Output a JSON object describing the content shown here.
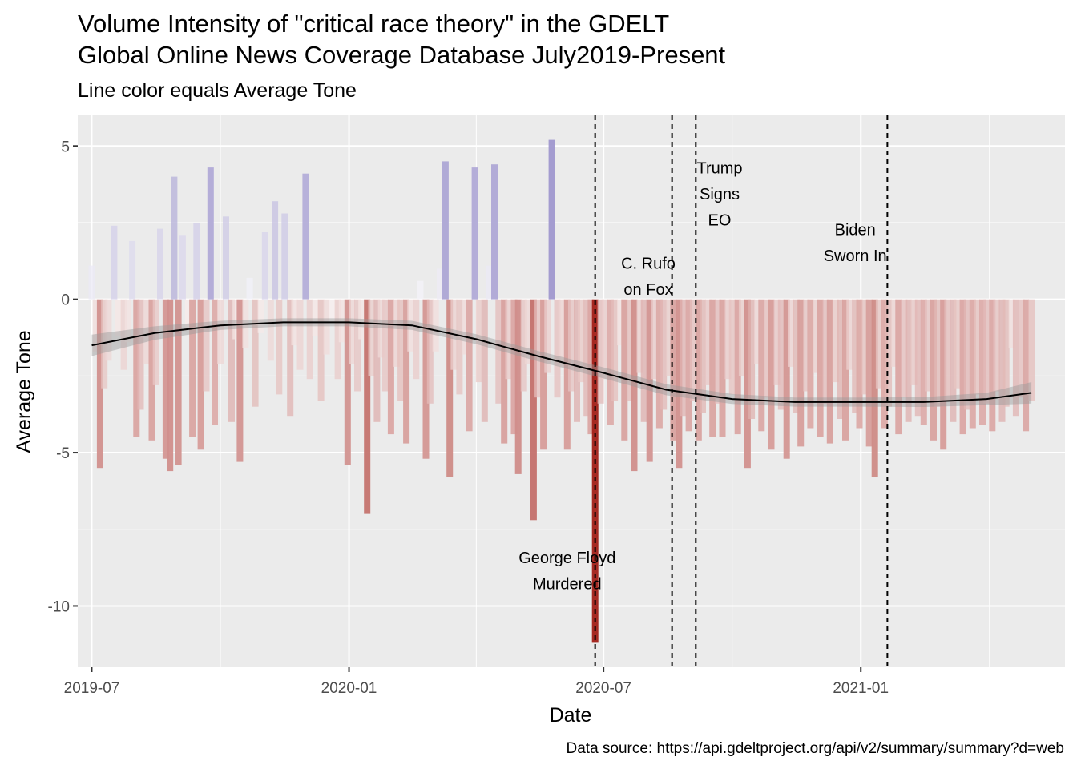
{
  "chart_data": {
    "type": "bar",
    "title_lines": [
      "Volume Intensity of \"critical race theory\" in the GDELT",
      "Global Online News Coverage Database July2019-Present"
    ],
    "subtitle": "Line color equals Average Tone",
    "xlabel": "Date",
    "ylabel": "Average Tone",
    "caption": "Data source: https://api.gdeltproject.org/api/v2/summary/summary?d=web",
    "xlim": [
      "2019-06-21",
      "2021-05-27"
    ],
    "ylim": [
      -12.0,
      6.0
    ],
    "y_ticks": [
      5,
      0,
      -5,
      -10
    ],
    "y_tick_labels": [
      "5",
      "0",
      "-5",
      "-10"
    ],
    "x_ticks": [
      "2019-07-01",
      "2020-01-01",
      "2020-07-01",
      "2021-01-01"
    ],
    "x_tick_labels": [
      "2019-07",
      "2020-01",
      "2020-07",
      "2021-01"
    ],
    "grid": true,
    "legend": "none",
    "colors": {
      "positive": "#9b92cc",
      "negative": "#a01a12",
      "neutral": "#ffffff",
      "panel": "#ebebeb",
      "smooth_line": "#000000",
      "smooth_band": "#999999"
    },
    "bars": [
      {
        "date": "2019-07-01",
        "value": 1.1
      },
      {
        "date": "2019-07-04",
        "value": -1.7
      },
      {
        "date": "2019-07-07",
        "value": -5.5
      },
      {
        "date": "2019-07-10",
        "value": -2.9
      },
      {
        "date": "2019-07-13",
        "value": -2.0
      },
      {
        "date": "2019-07-17",
        "value": 2.4
      },
      {
        "date": "2019-07-20",
        "value": -1.2
      },
      {
        "date": "2019-07-24",
        "value": -2.3
      },
      {
        "date": "2019-07-27",
        "value": -1.4
      },
      {
        "date": "2019-07-30",
        "value": 1.9
      },
      {
        "date": "2019-08-02",
        "value": -4.5
      },
      {
        "date": "2019-08-05",
        "value": -3.6
      },
      {
        "date": "2019-08-09",
        "value": -2.1
      },
      {
        "date": "2019-08-13",
        "value": -4.6
      },
      {
        "date": "2019-08-16",
        "value": -2.8
      },
      {
        "date": "2019-08-19",
        "value": 2.3
      },
      {
        "date": "2019-08-23",
        "value": -5.2
      },
      {
        "date": "2019-08-26",
        "value": -5.6
      },
      {
        "date": "2019-08-29",
        "value": 4.0
      },
      {
        "date": "2019-09-01",
        "value": -5.4
      },
      {
        "date": "2019-09-04",
        "value": 2.1
      },
      {
        "date": "2019-09-08",
        "value": -1.0
      },
      {
        "date": "2019-09-11",
        "value": -4.5
      },
      {
        "date": "2019-09-14",
        "value": 2.5
      },
      {
        "date": "2019-09-17",
        "value": -4.9
      },
      {
        "date": "2019-09-21",
        "value": -3.0
      },
      {
        "date": "2019-09-24",
        "value": 4.3
      },
      {
        "date": "2019-09-27",
        "value": -4.1
      },
      {
        "date": "2019-10-01",
        "value": -2.1
      },
      {
        "date": "2019-10-05",
        "value": 2.7
      },
      {
        "date": "2019-10-09",
        "value": -4.0
      },
      {
        "date": "2019-10-12",
        "value": -1.3
      },
      {
        "date": "2019-10-15",
        "value": -5.3
      },
      {
        "date": "2019-10-19",
        "value": -1.6
      },
      {
        "date": "2019-10-22",
        "value": 0.7
      },
      {
        "date": "2019-10-26",
        "value": -3.5
      },
      {
        "date": "2019-10-30",
        "value": -1.1
      },
      {
        "date": "2019-11-02",
        "value": 2.2
      },
      {
        "date": "2019-11-06",
        "value": -2.0
      },
      {
        "date": "2019-11-09",
        "value": 3.2
      },
      {
        "date": "2019-11-12",
        "value": -3.1
      },
      {
        "date": "2019-11-16",
        "value": 2.8
      },
      {
        "date": "2019-11-20",
        "value": -3.8
      },
      {
        "date": "2019-11-23",
        "value": -1.5
      },
      {
        "date": "2019-11-27",
        "value": -2.3
      },
      {
        "date": "2019-12-01",
        "value": 4.1
      },
      {
        "date": "2019-12-04",
        "value": -2.6
      },
      {
        "date": "2019-12-08",
        "value": -1.2
      },
      {
        "date": "2019-12-12",
        "value": -3.3
      },
      {
        "date": "2019-12-16",
        "value": -1.8
      },
      {
        "date": "2019-12-20",
        "value": -0.8
      },
      {
        "date": "2019-12-24",
        "value": -2.6
      },
      {
        "date": "2019-12-27",
        "value": -1.4
      },
      {
        "date": "2019-12-31",
        "value": -5.4
      },
      {
        "date": "2020-01-03",
        "value": -2.1
      },
      {
        "date": "2020-01-07",
        "value": -3.0
      },
      {
        "date": "2020-01-10",
        "value": -1.3
      },
      {
        "date": "2020-01-14",
        "value": -7.0
      },
      {
        "date": "2020-01-17",
        "value": -2.5
      },
      {
        "date": "2020-01-21",
        "value": -4.0
      },
      {
        "date": "2020-01-24",
        "value": -1.9
      },
      {
        "date": "2020-01-27",
        "value": -3.0
      },
      {
        "date": "2020-01-31",
        "value": -4.4
      },
      {
        "date": "2020-02-04",
        "value": -2.2
      },
      {
        "date": "2020-02-07",
        "value": -3.3
      },
      {
        "date": "2020-02-11",
        "value": -4.7
      },
      {
        "date": "2020-02-14",
        "value": -1.7
      },
      {
        "date": "2020-02-18",
        "value": -2.6
      },
      {
        "date": "2020-02-21",
        "value": 0.6
      },
      {
        "date": "2020-02-25",
        "value": -5.2
      },
      {
        "date": "2020-02-28",
        "value": -3.4
      },
      {
        "date": "2020-03-03",
        "value": -1.7
      },
      {
        "date": "2020-03-06",
        "value": 1.0
      },
      {
        "date": "2020-03-10",
        "value": 4.5
      },
      {
        "date": "2020-03-13",
        "value": -5.8
      },
      {
        "date": "2020-03-16",
        "value": -2.3
      },
      {
        "date": "2020-03-20",
        "value": -3.1
      },
      {
        "date": "2020-03-24",
        "value": -1.8
      },
      {
        "date": "2020-03-27",
        "value": -4.3
      },
      {
        "date": "2020-03-31",
        "value": 4.3
      },
      {
        "date": "2020-04-03",
        "value": -2.7
      },
      {
        "date": "2020-04-07",
        "value": -4.0
      },
      {
        "date": "2020-04-10",
        "value": 1.1
      },
      {
        "date": "2020-04-14",
        "value": 4.4
      },
      {
        "date": "2020-04-17",
        "value": -3.4
      },
      {
        "date": "2020-04-21",
        "value": -4.7
      },
      {
        "date": "2020-04-24",
        "value": -2.6
      },
      {
        "date": "2020-04-28",
        "value": -4.4
      },
      {
        "date": "2020-05-01",
        "value": -5.7
      },
      {
        "date": "2020-05-05",
        "value": -3.0
      },
      {
        "date": "2020-05-08",
        "value": -2.1
      },
      {
        "date": "2020-05-12",
        "value": -7.2
      },
      {
        "date": "2020-05-15",
        "value": -3.2
      },
      {
        "date": "2020-05-19",
        "value": -4.9
      },
      {
        "date": "2020-05-22",
        "value": -2.4
      },
      {
        "date": "2020-05-25",
        "value": 5.2
      },
      {
        "date": "2020-05-29",
        "value": -3.2
      },
      {
        "date": "2020-06-01",
        "value": -2.2
      },
      {
        "date": "2020-06-05",
        "value": -4.9
      },
      {
        "date": "2020-06-08",
        "value": -3.0
      },
      {
        "date": "2020-06-12",
        "value": -4.0
      },
      {
        "date": "2020-06-15",
        "value": -2.7
      },
      {
        "date": "2020-06-19",
        "value": -3.8
      },
      {
        "date": "2020-06-22",
        "value": -4.4
      },
      {
        "date": "2020-06-25",
        "value": -11.2
      },
      {
        "date": "2020-06-29",
        "value": -3.4
      },
      {
        "date": "2020-07-02",
        "value": -2.6
      },
      {
        "date": "2020-07-06",
        "value": -4.1
      },
      {
        "date": "2020-07-09",
        "value": -3.3
      },
      {
        "date": "2020-07-13",
        "value": -1.5
      },
      {
        "date": "2020-07-16",
        "value": -4.6
      },
      {
        "date": "2020-07-20",
        "value": -3.3
      },
      {
        "date": "2020-07-23",
        "value": -5.6
      },
      {
        "date": "2020-07-27",
        "value": -2.4
      },
      {
        "date": "2020-07-30",
        "value": -4.0
      },
      {
        "date": "2020-08-03",
        "value": -5.3
      },
      {
        "date": "2020-08-06",
        "value": -2.6
      },
      {
        "date": "2020-08-10",
        "value": -4.2
      },
      {
        "date": "2020-08-13",
        "value": -3.6
      },
      {
        "date": "2020-08-17",
        "value": -2.5
      },
      {
        "date": "2020-08-20",
        "value": -4.6
      },
      {
        "date": "2020-08-24",
        "value": -5.5
      },
      {
        "date": "2020-08-27",
        "value": -3.8
      },
      {
        "date": "2020-08-31",
        "value": -4.3
      },
      {
        "date": "2020-09-03",
        "value": -3.3
      },
      {
        "date": "2020-09-07",
        "value": -4.6
      },
      {
        "date": "2020-09-10",
        "value": -3.7
      },
      {
        "date": "2020-09-14",
        "value": -2.8
      },
      {
        "date": "2020-09-17",
        "value": -4.5
      },
      {
        "date": "2020-09-21",
        "value": -3.4
      },
      {
        "date": "2020-09-24",
        "value": -4.5
      },
      {
        "date": "2020-09-28",
        "value": -2.6
      },
      {
        "date": "2020-10-01",
        "value": -3.1
      },
      {
        "date": "2020-10-05",
        "value": -4.4
      },
      {
        "date": "2020-10-08",
        "value": -2.5
      },
      {
        "date": "2020-10-12",
        "value": -5.5
      },
      {
        "date": "2020-10-15",
        "value": -3.9
      },
      {
        "date": "2020-10-19",
        "value": -2.1
      },
      {
        "date": "2020-10-22",
        "value": -4.3
      },
      {
        "date": "2020-10-26",
        "value": -3.2
      },
      {
        "date": "2020-10-29",
        "value": -4.9
      },
      {
        "date": "2020-11-02",
        "value": -2.8
      },
      {
        "date": "2020-11-05",
        "value": -3.6
      },
      {
        "date": "2020-11-09",
        "value": -5.2
      },
      {
        "date": "2020-11-12",
        "value": -2.2
      },
      {
        "date": "2020-11-16",
        "value": -3.7
      },
      {
        "date": "2020-11-19",
        "value": -4.8
      },
      {
        "date": "2020-11-23",
        "value": -3.0
      },
      {
        "date": "2020-11-26",
        "value": -4.2
      },
      {
        "date": "2020-11-30",
        "value": -2.4
      },
      {
        "date": "2020-12-03",
        "value": -4.5
      },
      {
        "date": "2020-12-07",
        "value": -3.4
      },
      {
        "date": "2020-12-10",
        "value": -4.7
      },
      {
        "date": "2020-12-14",
        "value": -2.7
      },
      {
        "date": "2020-12-17",
        "value": -3.9
      },
      {
        "date": "2020-12-21",
        "value": -4.6
      },
      {
        "date": "2020-12-24",
        "value": -2.3
      },
      {
        "date": "2020-12-28",
        "value": -3.7
      },
      {
        "date": "2020-12-31",
        "value": -4.2
      },
      {
        "date": "2021-01-04",
        "value": -3.1
      },
      {
        "date": "2021-01-07",
        "value": -4.8
      },
      {
        "date": "2021-01-11",
        "value": -5.8
      },
      {
        "date": "2021-01-14",
        "value": -2.9
      },
      {
        "date": "2021-01-18",
        "value": -4.2
      },
      {
        "date": "2021-01-21",
        "value": -3.5
      },
      {
        "date": "2021-01-25",
        "value": -2.2
      },
      {
        "date": "2021-01-28",
        "value": -4.4
      },
      {
        "date": "2021-02-01",
        "value": -3.2
      },
      {
        "date": "2021-02-04",
        "value": -4.0
      },
      {
        "date": "2021-02-08",
        "value": -2.8
      },
      {
        "date": "2021-02-11",
        "value": -3.8
      },
      {
        "date": "2021-02-15",
        "value": -4.1
      },
      {
        "date": "2021-02-18",
        "value": -3.0
      },
      {
        "date": "2021-02-22",
        "value": -4.6
      },
      {
        "date": "2021-02-25",
        "value": -3.5
      },
      {
        "date": "2021-03-01",
        "value": -4.9
      },
      {
        "date": "2021-03-04",
        "value": -3.3
      },
      {
        "date": "2021-03-08",
        "value": -4.0
      },
      {
        "date": "2021-03-11",
        "value": -2.9
      },
      {
        "date": "2021-03-15",
        "value": -4.4
      },
      {
        "date": "2021-03-18",
        "value": -3.6
      },
      {
        "date": "2021-03-22",
        "value": -4.2
      },
      {
        "date": "2021-03-25",
        "value": -3.1
      },
      {
        "date": "2021-03-29",
        "value": -4.1
      },
      {
        "date": "2021-04-01",
        "value": -3.4
      },
      {
        "date": "2021-04-05",
        "value": -4.3
      },
      {
        "date": "2021-04-08",
        "value": -3.0
      },
      {
        "date": "2021-04-12",
        "value": -4.0
      },
      {
        "date": "2021-04-15",
        "value": -3.5
      },
      {
        "date": "2021-04-19",
        "value": -1.6
      },
      {
        "date": "2021-04-22",
        "value": -3.8
      },
      {
        "date": "2021-04-26",
        "value": -3.2
      },
      {
        "date": "2021-04-29",
        "value": -4.3
      },
      {
        "date": "2021-05-03",
        "value": -3.3
      }
    ],
    "smooth": {
      "x": [
        "2019-07-01",
        "2019-08-15",
        "2019-10-01",
        "2019-11-15",
        "2020-01-01",
        "2020-02-15",
        "2020-04-01",
        "2020-05-15",
        "2020-07-01",
        "2020-08-15",
        "2020-10-01",
        "2020-11-15",
        "2021-01-01",
        "2021-02-15",
        "2021-04-01",
        "2021-05-03"
      ],
      "y": [
        -1.5,
        -1.1,
        -0.85,
        -0.75,
        -0.75,
        -0.85,
        -1.3,
        -1.85,
        -2.4,
        -2.95,
        -3.25,
        -3.35,
        -3.35,
        -3.35,
        -3.25,
        -3.05
      ],
      "band_halfwidth": [
        0.35,
        0.22,
        0.15,
        0.13,
        0.13,
        0.15,
        0.16,
        0.17,
        0.18,
        0.18,
        0.16,
        0.15,
        0.15,
        0.16,
        0.2,
        0.35
      ]
    },
    "events": [
      {
        "date": "2020-06-25",
        "label_lines": [
          "George Floyd",
          "Murdered"
        ],
        "label_y": -8.6,
        "label_date": "2020-06-05"
      },
      {
        "date": "2020-08-19",
        "label_lines": [
          "C. Rufo",
          "on Fox"
        ],
        "label_y": 1.0,
        "label_date": "2020-08-02"
      },
      {
        "date": "2020-09-05",
        "label_lines": [
          "Trump",
          "Signs",
          "EO"
        ],
        "label_y": 4.1,
        "label_date": "2020-09-22"
      },
      {
        "date": "2021-01-20",
        "label_lines": [
          "Biden",
          "Sworn In"
        ],
        "label_y": 2.1,
        "label_date": "2020-12-28"
      }
    ]
  }
}
